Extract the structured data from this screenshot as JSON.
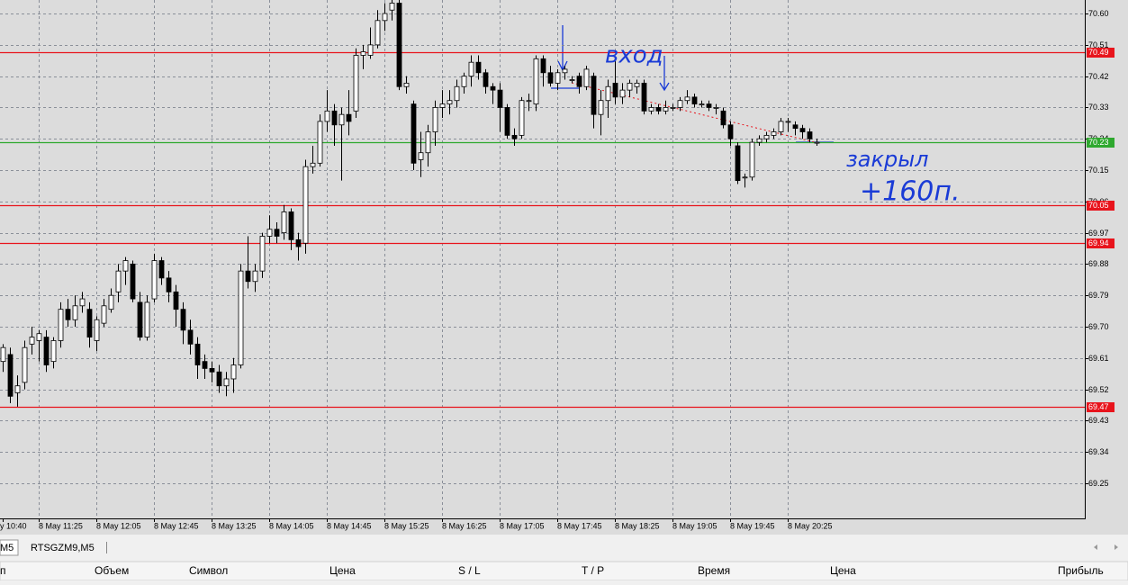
{
  "chart_data": {
    "type": "candlestick",
    "categories": [
      "y 10:40",
      null,
      null,
      null,
      null,
      "8 May 11:25",
      null,
      null,
      null,
      null,
      null,
      null,
      null,
      "8 May 12:05",
      null,
      null,
      null,
      null,
      null,
      null,
      null,
      "8 May 12:45",
      null,
      null,
      null,
      null,
      null,
      null,
      null,
      "8 May 13:25",
      null,
      null,
      null,
      null,
      null,
      null,
      null,
      "8 May 14:05",
      null,
      null,
      null,
      null,
      null,
      null,
      null,
      "8 May 14:45",
      null,
      null,
      null,
      null,
      null,
      null,
      null,
      "8 May 15:25",
      null,
      null,
      null,
      null,
      null,
      null,
      null,
      "8 May 16:25",
      null,
      null,
      null,
      null,
      null,
      null,
      null,
      "8 May 17:05",
      null,
      null,
      null,
      null,
      null,
      null,
      null,
      "8 May 17:45",
      null,
      null,
      null,
      null,
      null,
      null,
      null,
      "8 May 18:25",
      null,
      null,
      null,
      null,
      null,
      null,
      null,
      "8 May 19:05",
      null,
      null,
      null,
      null,
      null,
      null,
      null,
      "8 May 19:45",
      null,
      null,
      null,
      null,
      null,
      null,
      null,
      "8 May 20:25",
      null,
      null,
      null,
      null
    ],
    "open": [
      69.6,
      69.62,
      69.51,
      69.54,
      69.65,
      69.66,
      69.67,
      69.6,
      69.66,
      69.75,
      69.72,
      69.76,
      69.75,
      69.66,
      69.71,
      69.75,
      69.8,
      69.86,
      69.88,
      69.77,
      69.67,
      69.78,
      69.89,
      69.84,
      69.8,
      69.75,
      69.69,
      69.65,
      69.6,
      69.58,
      69.57,
      69.53,
      69.55,
      69.59,
      69.86,
      69.83,
      69.86,
      69.96,
      69.98,
      69.97,
      70.03,
      69.95,
      69.94,
      70.16,
      70.17,
      70.29,
      70.32,
      70.28,
      70.31,
      70.32,
      70.48,
      70.48,
      70.51,
      70.58,
      70.61,
      70.63,
      70.39,
      70.34,
      70.18,
      70.2,
      70.26,
      70.33,
      70.34,
      70.35,
      70.39,
      70.42,
      70.46,
      70.43,
      70.39,
      70.38,
      70.33,
      70.25,
      70.25,
      70.35,
      70.34,
      70.47,
      70.43,
      70.4,
      70.43,
      70.41,
      70.42,
      70.39,
      70.42,
      70.31,
      70.35,
      70.4,
      70.36,
      70.38,
      70.39,
      70.4,
      70.32,
      70.33,
      70.32,
      70.33,
      70.33,
      70.35,
      70.36,
      70.34,
      70.34,
      70.33,
      70.32,
      70.28,
      70.22,
      70.13,
      70.13,
      70.23,
      70.24,
      70.25,
      70.26,
      70.29,
      70.28,
      70.27,
      70.26,
      70.23
    ],
    "high": [
      69.65,
      69.64,
      69.56,
      69.66,
      69.7,
      69.69,
      69.69,
      69.67,
      69.77,
      69.78,
      69.79,
      69.8,
      69.77,
      69.73,
      69.78,
      69.81,
      69.88,
      69.9,
      69.89,
      69.8,
      69.79,
      69.91,
      69.9,
      69.86,
      69.82,
      69.77,
      69.72,
      69.67,
      69.62,
      69.6,
      69.59,
      69.57,
      69.61,
      69.88,
      69.96,
      69.88,
      69.97,
      70.02,
      70.0,
      70.05,
      70.04,
      69.97,
      70.18,
      70.22,
      70.31,
      70.38,
      70.34,
      70.33,
      70.38,
      70.5,
      70.51,
      70.56,
      70.61,
      70.63,
      70.64,
      70.64,
      70.42,
      70.35,
      70.26,
      70.28,
      70.35,
      70.38,
      70.38,
      70.41,
      70.43,
      70.48,
      70.48,
      70.44,
      70.4,
      70.4,
      70.34,
      70.27,
      70.36,
      70.37,
      70.48,
      70.48,
      70.45,
      70.44,
      70.45,
      70.42,
      70.43,
      70.45,
      70.43,
      70.38,
      70.41,
      70.47,
      70.4,
      70.41,
      70.41,
      70.41,
      70.34,
      70.34,
      70.35,
      70.34,
      70.36,
      70.38,
      70.37,
      70.35,
      70.35,
      70.34,
      70.33,
      70.29,
      70.23,
      70.14,
      70.24,
      70.25,
      70.26,
      70.27,
      70.3,
      70.3,
      70.29,
      70.28,
      70.27,
      70.24
    ],
    "low": [
      69.57,
      69.48,
      69.47,
      69.52,
      69.62,
      69.6,
      69.57,
      69.58,
      69.64,
      69.7,
      69.7,
      69.74,
      69.64,
      69.63,
      69.7,
      69.74,
      69.77,
      69.82,
      69.77,
      69.66,
      69.66,
      69.77,
      69.82,
      69.77,
      69.7,
      69.65,
      69.62,
      69.55,
      69.55,
      69.54,
      69.51,
      69.5,
      69.51,
      69.58,
      69.81,
      69.8,
      69.84,
      69.94,
      69.94,
      69.95,
      69.92,
      69.89,
      69.91,
      70.14,
      70.16,
      70.26,
      70.22,
      70.12,
      70.25,
      70.3,
      70.44,
      70.47,
      70.5,
      70.55,
      70.58,
      70.38,
      70.37,
      70.15,
      70.13,
      70.16,
      70.22,
      70.3,
      70.31,
      70.33,
      70.37,
      70.39,
      70.41,
      70.37,
      70.34,
      70.26,
      70.24,
      70.22,
      70.24,
      70.32,
      70.32,
      70.39,
      70.39,
      70.38,
      70.41,
      70.4,
      70.37,
      70.38,
      70.27,
      70.25,
      70.3,
      70.34,
      70.34,
      70.36,
      70.37,
      70.31,
      70.31,
      70.31,
      70.31,
      70.32,
      70.32,
      70.34,
      70.33,
      70.33,
      70.32,
      70.31,
      70.27,
      70.22,
      70.11,
      70.1,
      70.12,
      70.22,
      70.23,
      70.24,
      70.25,
      70.26,
      70.25,
      70.24,
      70.23,
      70.22
    ],
    "close": [
      69.64,
      69.5,
      69.53,
      69.64,
      69.67,
      69.68,
      69.59,
      69.66,
      69.75,
      69.72,
      69.76,
      69.78,
      69.67,
      69.72,
      69.76,
      69.79,
      69.86,
      69.89,
      69.78,
      69.67,
      69.77,
      69.89,
      69.84,
      69.8,
      69.75,
      69.69,
      69.65,
      69.59,
      69.58,
      69.57,
      69.53,
      69.55,
      69.59,
      69.86,
      69.83,
      69.86,
      69.96,
      69.98,
      69.96,
      70.03,
      69.95,
      69.93,
      70.16,
      70.17,
      70.29,
      70.32,
      70.28,
      70.31,
      70.29,
      70.48,
      70.49,
      70.51,
      70.58,
      70.6,
      70.63,
      70.39,
      70.4,
      70.17,
      70.2,
      70.26,
      70.33,
      70.34,
      70.35,
      70.39,
      70.42,
      70.46,
      70.43,
      70.39,
      70.38,
      70.33,
      70.25,
      70.24,
      70.35,
      70.35,
      70.47,
      70.43,
      70.4,
      70.43,
      70.44,
      70.41,
      70.39,
      70.44,
      70.31,
      70.35,
      70.39,
      70.36,
      70.38,
      70.4,
      70.4,
      70.32,
      70.33,
      70.32,
      70.33,
      70.33,
      70.35,
      70.36,
      70.34,
      70.34,
      70.33,
      70.33,
      70.28,
      70.24,
      70.12,
      70.13,
      70.23,
      70.24,
      70.25,
      70.26,
      70.29,
      70.29,
      70.27,
      70.26,
      70.24,
      70.23
    ],
    "ylim": [
      69.149,
      70.639
    ],
    "yticks": [
      {
        "value": 70.6,
        "label": "70.60"
      },
      70.51,
      70.42,
      70.33,
      70.24,
      70.15,
      70.06,
      69.97,
      69.88,
      69.79,
      {
        "value": 69.7,
        "label": "69.70"
      },
      69.61,
      69.52,
      69.43,
      69.34,
      69.25
    ],
    "grid": true,
    "bull_color": "#ffffff",
    "bear_color": "#000000",
    "levels": [
      {
        "value": 70.49,
        "color": "#e8141c"
      },
      {
        "value": 70.23,
        "color": "#2ea82e"
      },
      {
        "value": 70.05,
        "color": "#e8141c"
      },
      {
        "value": 69.94,
        "color": "#e8141c"
      },
      {
        "value": 69.47,
        "color": "#e8141c"
      }
    ],
    "annotations": [
      "вход",
      "закрыл",
      "+160п."
    ]
  },
  "tabs": [
    "M5",
    "RTSGZM9,M5"
  ],
  "terminal": {
    "columns": [
      "п",
      "Объем",
      "Символ",
      "Цена",
      "S / L",
      "T / P",
      "Время",
      "Цена",
      "Прибыль"
    ]
  }
}
